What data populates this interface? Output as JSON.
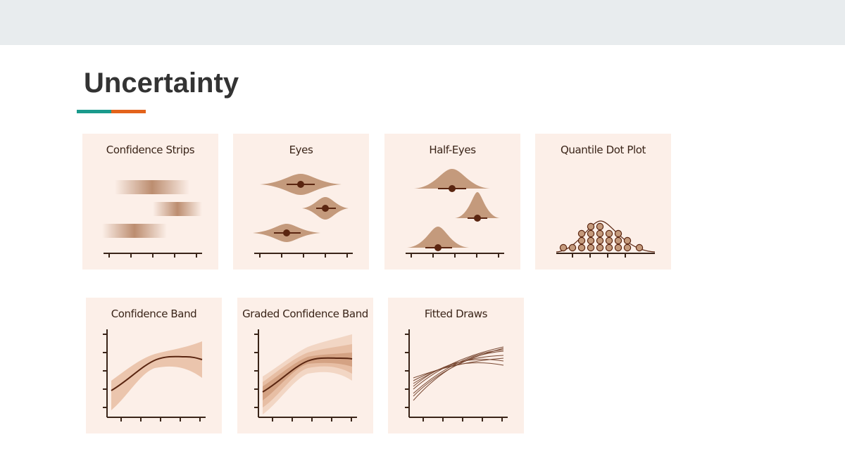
{
  "slide": {
    "title": "Uncertainty",
    "accent_colors": [
      "#1a9a8c",
      "#e3631b"
    ]
  },
  "panels": [
    {
      "label": "Confidence Strips",
      "icon": "confidence-strips-chart"
    },
    {
      "label": "Eyes",
      "icon": "eyes-chart"
    },
    {
      "label": "Half-Eyes",
      "icon": "half-eyes-chart"
    },
    {
      "label": "Quantile Dot Plot",
      "icon": "quantile-dot-plot-chart"
    },
    {
      "label": "Confidence Band",
      "icon": "confidence-band-chart"
    },
    {
      "label": "Graded Confidence Band",
      "icon": "graded-confidence-band-chart"
    },
    {
      "label": "Fitted Draws",
      "icon": "fitted-draws-chart"
    }
  ],
  "colors": {
    "panel_bg": "#fcefe8",
    "mark_fill": "#c49a7c",
    "mark_dark": "#5a2510",
    "axis": "#3a2418"
  }
}
